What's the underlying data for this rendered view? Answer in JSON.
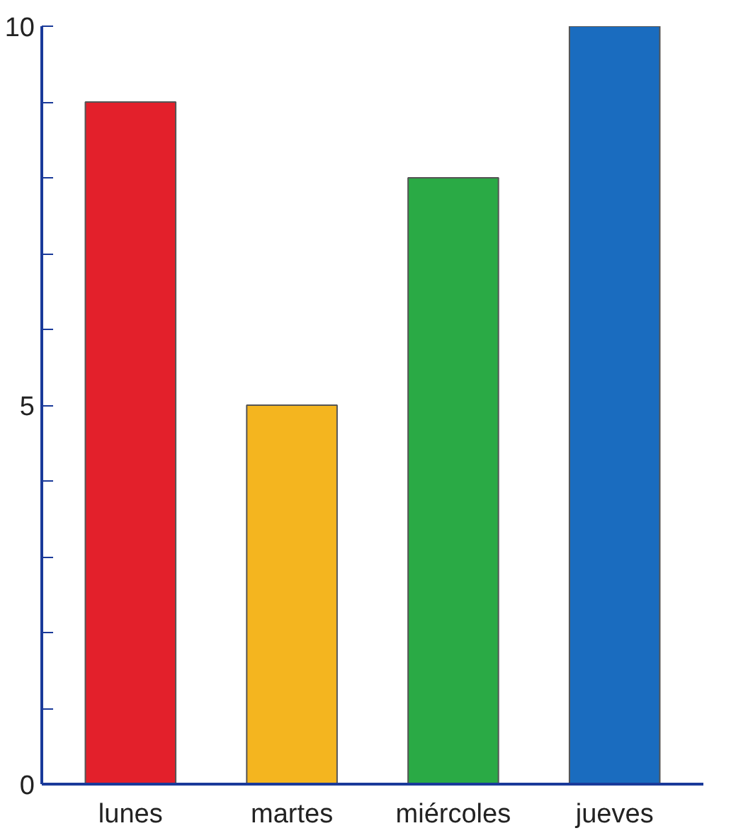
{
  "chart_data": {
    "type": "bar",
    "categories": [
      "lunes",
      "martes",
      "miércoles",
      "jueves"
    ],
    "values": [
      9,
      5,
      8,
      10
    ],
    "colors": [
      "#e3202b",
      "#f4b51f",
      "#2aaa45",
      "#1a6cbf"
    ],
    "ylim": [
      0,
      10
    ],
    "yticks": [
      0,
      {
        "value": 1,
        "label": null
      },
      {
        "value": 2,
        "label": null
      },
      {
        "value": 3,
        "label": null
      },
      {
        "value": 4,
        "label": null
      },
      5,
      {
        "value": 6,
        "label": null
      },
      {
        "value": 7,
        "label": null
      },
      {
        "value": 8,
        "label": null
      },
      {
        "value": 9,
        "label": null
      },
      10
    ],
    "grid": false
  }
}
